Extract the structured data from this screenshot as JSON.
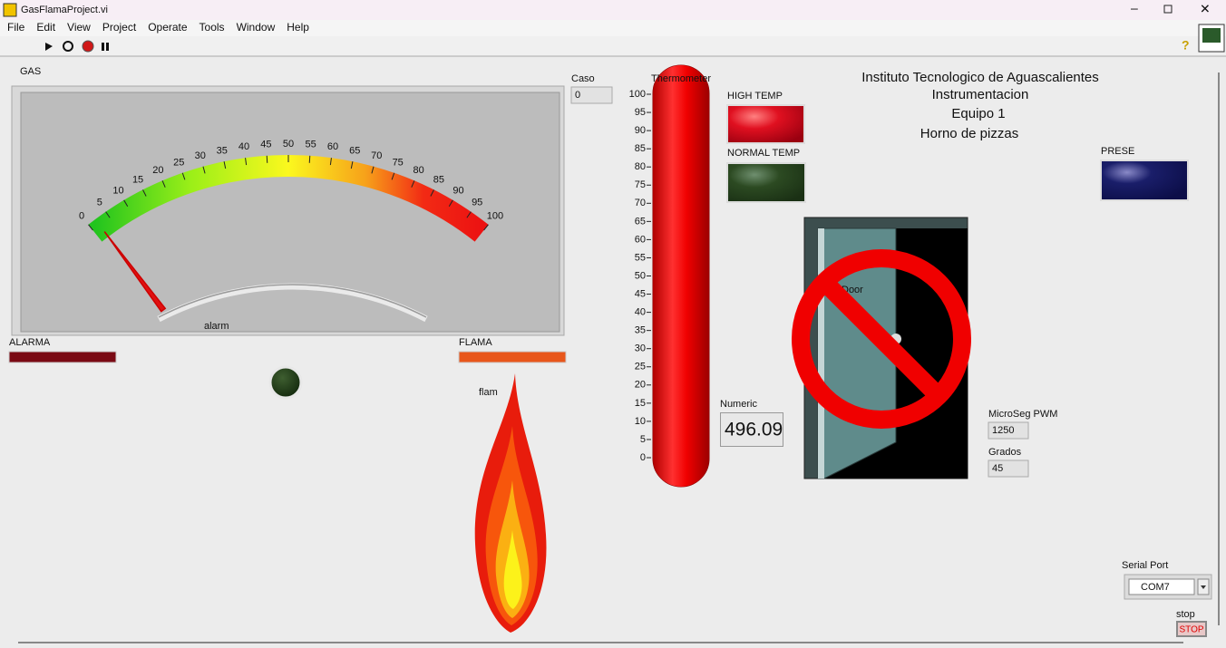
{
  "window": {
    "title": "GasFlamaProject.vi"
  },
  "menu": [
    "File",
    "Edit",
    "View",
    "Project",
    "Operate",
    "Tools",
    "Window",
    "Help"
  ],
  "gauge": {
    "label": "GAS",
    "caption": "alarm",
    "value": 2,
    "ticks": [
      0,
      5,
      10,
      15,
      20,
      25,
      30,
      35,
      40,
      45,
      50,
      55,
      60,
      65,
      70,
      75,
      80,
      85,
      90,
      95,
      100
    ]
  },
  "caso": {
    "label": "Caso",
    "value": 0
  },
  "thermometer": {
    "label": "Thermometer",
    "value": 100,
    "ticks": [
      0,
      5,
      10,
      15,
      20,
      25,
      30,
      35,
      40,
      45,
      50,
      55,
      60,
      65,
      70,
      75,
      80,
      85,
      90,
      95,
      100
    ]
  },
  "leds": {
    "high_temp": "HIGH TEMP",
    "normal_temp": "NORMAL TEMP",
    "prese": "PRESE"
  },
  "header": [
    "Instituto Tecnologico de Aguascalientes",
    "Instrumentacion",
    "Equipo 1",
    "Horno de pizzas"
  ],
  "alarma": {
    "label": "ALARMA"
  },
  "flama": {
    "label": "FLAMA",
    "caption": "flam"
  },
  "door": {
    "label": "Door"
  },
  "numeric": {
    "label": "Numeric",
    "value": 496.09
  },
  "pwm": {
    "label": "MicroSeg PWM",
    "value": 1250
  },
  "grados": {
    "label": "Grados",
    "value": 45
  },
  "serial": {
    "label": "Serial Port",
    "value": "COM7"
  },
  "stop": {
    "label": "stop",
    "button": "STOP"
  }
}
